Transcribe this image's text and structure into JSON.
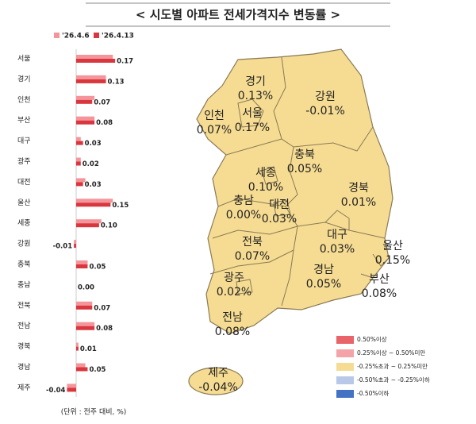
{
  "chart_data": {
    "type": "bar",
    "orientation": "horizontal",
    "title": "< 시도별 아파트 전세가격지수 변동률 >",
    "note": "(단위 : 전주 대비, %)",
    "categories": [
      "서울",
      "경기",
      "인천",
      "부산",
      "대구",
      "광주",
      "대전",
      "울산",
      "세종",
      "강원",
      "충북",
      "충남",
      "전북",
      "전남",
      "경북",
      "경남",
      "제주"
    ],
    "xlim": [
      -0.09,
      0.27
    ],
    "series": [
      {
        "name": "'26.4.6",
        "color": "#f4959b",
        "values": [
          0.16,
          0.13,
          0.08,
          0.08,
          0.02,
          0.02,
          0.04,
          0.16,
          0.11,
          -0.01,
          0.05,
          0.0,
          0.07,
          0.08,
          0.01,
          0.04,
          -0.04
        ]
      },
      {
        "name": "'26.4.13",
        "color": "#d9363e",
        "values": [
          0.17,
          0.13,
          0.07,
          0.08,
          0.03,
          0.02,
          0.03,
          0.15,
          0.1,
          -0.01,
          0.05,
          0.0,
          0.07,
          0.08,
          0.01,
          0.05,
          -0.04
        ],
        "value_labels": [
          "0.17",
          "0.13",
          "0.07",
          "0.08",
          "0.03",
          "0.02",
          "0.03",
          "0.15",
          "0.10",
          "-0.01",
          "0.05",
          "0.00",
          "0.07",
          "0.08",
          "0.01",
          "0.05",
          "-0.04"
        ]
      }
    ],
    "map": {
      "regions": [
        {
          "name": "경기",
          "value_label": "0.13%"
        },
        {
          "name": "강원",
          "value_label": "-0.01%"
        },
        {
          "name": "인천",
          "value_label": "0.07%"
        },
        {
          "name": "서울",
          "value_label": "0.17%"
        },
        {
          "name": "충북",
          "value_label": "0.05%"
        },
        {
          "name": "세종",
          "value_label": "0.10%"
        },
        {
          "name": "충남",
          "value_label": "0.00%"
        },
        {
          "name": "대전",
          "value_label": "0.03%"
        },
        {
          "name": "경북",
          "value_label": "0.01%"
        },
        {
          "name": "대구",
          "value_label": "0.03%"
        },
        {
          "name": "울산",
          "value_label": "0.15%"
        },
        {
          "name": "전북",
          "value_label": "0.07%"
        },
        {
          "name": "경남",
          "value_label": "0.05%"
        },
        {
          "name": "부산",
          "value_label": "0.08%"
        },
        {
          "name": "광주",
          "value_label": "0.02%"
        },
        {
          "name": "전남",
          "value_label": "0.08%"
        },
        {
          "name": "제주",
          "value_label": "-0.04%"
        }
      ],
      "fill": "#f6dc92",
      "legend": [
        {
          "label": "0.50%이상",
          "color": "#e8636a"
        },
        {
          "label": "0.25%이상 ~ 0.50%미만",
          "color": "#f4a3a8"
        },
        {
          "label": "-0.25%초과 ~ 0.25%미만",
          "color": "#f6dc92"
        },
        {
          "label": "-0.50%초과 ~ -0.25%이하",
          "color": "#b7c8e8"
        },
        {
          "label": "-0.50%이하",
          "color": "#4472c4"
        }
      ]
    }
  }
}
